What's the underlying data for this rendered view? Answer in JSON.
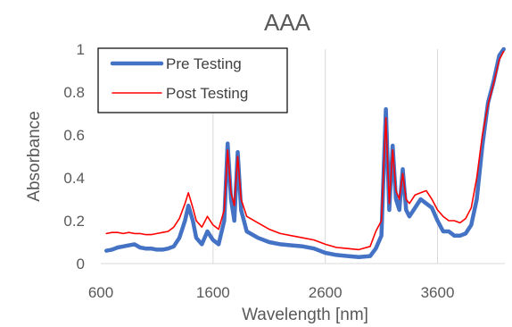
{
  "chart_data": {
    "type": "line",
    "title": "AAA",
    "xlabel": "Wavelength [nm]",
    "ylabel": "Absorbance",
    "xlim": [
      600,
      4200
    ],
    "ylim": [
      0,
      1
    ],
    "x_ticks": [
      600,
      1600,
      2600,
      3600
    ],
    "x_tick_labels": [
      "600",
      "1600",
      "2600",
      "3600"
    ],
    "y_ticks": [
      0,
      0.2,
      0.4,
      0.6,
      0.8,
      1
    ],
    "y_tick_labels": [
      "0",
      "0.2",
      "0.4",
      "0.6",
      "0.8",
      "1"
    ],
    "grid": "vertical",
    "legend_position": "top-left",
    "series": [
      {
        "name": "Pre Testing",
        "color": "#4472C4",
        "width": 4.5,
        "points": [
          [
            650,
            0.06
          ],
          [
            700,
            0.065
          ],
          [
            750,
            0.075
          ],
          [
            800,
            0.08
          ],
          [
            850,
            0.085
          ],
          [
            900,
            0.09
          ],
          [
            950,
            0.075
          ],
          [
            1000,
            0.07
          ],
          [
            1050,
            0.07
          ],
          [
            1100,
            0.065
          ],
          [
            1150,
            0.065
          ],
          [
            1200,
            0.07
          ],
          [
            1250,
            0.08
          ],
          [
            1300,
            0.12
          ],
          [
            1350,
            0.2
          ],
          [
            1380,
            0.27
          ],
          [
            1420,
            0.2
          ],
          [
            1450,
            0.12
          ],
          [
            1500,
            0.09
          ],
          [
            1550,
            0.15
          ],
          [
            1600,
            0.11
          ],
          [
            1650,
            0.09
          ],
          [
            1700,
            0.2
          ],
          [
            1730,
            0.56
          ],
          [
            1760,
            0.3
          ],
          [
            1790,
            0.2
          ],
          [
            1820,
            0.52
          ],
          [
            1850,
            0.25
          ],
          [
            1900,
            0.15
          ],
          [
            2000,
            0.12
          ],
          [
            2100,
            0.1
          ],
          [
            2200,
            0.09
          ],
          [
            2300,
            0.085
          ],
          [
            2400,
            0.08
          ],
          [
            2500,
            0.07
          ],
          [
            2600,
            0.05
          ],
          [
            2700,
            0.04
          ],
          [
            2800,
            0.035
          ],
          [
            2900,
            0.03
          ],
          [
            3000,
            0.035
          ],
          [
            3050,
            0.07
          ],
          [
            3100,
            0.13
          ],
          [
            3140,
            0.72
          ],
          [
            3170,
            0.25
          ],
          [
            3200,
            0.55
          ],
          [
            3230,
            0.3
          ],
          [
            3260,
            0.25
          ],
          [
            3290,
            0.44
          ],
          [
            3320,
            0.25
          ],
          [
            3350,
            0.22
          ],
          [
            3400,
            0.26
          ],
          [
            3450,
            0.3
          ],
          [
            3500,
            0.28
          ],
          [
            3550,
            0.26
          ],
          [
            3600,
            0.2
          ],
          [
            3650,
            0.15
          ],
          [
            3700,
            0.15
          ],
          [
            3750,
            0.13
          ],
          [
            3800,
            0.13
          ],
          [
            3850,
            0.14
          ],
          [
            3900,
            0.18
          ],
          [
            3950,
            0.3
          ],
          [
            4000,
            0.55
          ],
          [
            4050,
            0.75
          ],
          [
            4100,
            0.85
          ],
          [
            4150,
            0.97
          ],
          [
            4190,
            1.0
          ]
        ]
      },
      {
        "name": "Post Testing",
        "color": "#FF0000",
        "width": 1.6,
        "points": [
          [
            650,
            0.14
          ],
          [
            700,
            0.145
          ],
          [
            750,
            0.145
          ],
          [
            800,
            0.14
          ],
          [
            850,
            0.145
          ],
          [
            900,
            0.14
          ],
          [
            950,
            0.14
          ],
          [
            1000,
            0.135
          ],
          [
            1050,
            0.135
          ],
          [
            1100,
            0.14
          ],
          [
            1150,
            0.145
          ],
          [
            1200,
            0.15
          ],
          [
            1250,
            0.17
          ],
          [
            1300,
            0.21
          ],
          [
            1350,
            0.28
          ],
          [
            1380,
            0.33
          ],
          [
            1420,
            0.26
          ],
          [
            1450,
            0.2
          ],
          [
            1500,
            0.17
          ],
          [
            1550,
            0.22
          ],
          [
            1600,
            0.18
          ],
          [
            1650,
            0.16
          ],
          [
            1700,
            0.25
          ],
          [
            1730,
            0.53
          ],
          [
            1760,
            0.33
          ],
          [
            1790,
            0.27
          ],
          [
            1820,
            0.5
          ],
          [
            1850,
            0.3
          ],
          [
            1900,
            0.22
          ],
          [
            2000,
            0.19
          ],
          [
            2100,
            0.16
          ],
          [
            2200,
            0.14
          ],
          [
            2300,
            0.13
          ],
          [
            2400,
            0.12
          ],
          [
            2500,
            0.11
          ],
          [
            2600,
            0.09
          ],
          [
            2700,
            0.075
          ],
          [
            2800,
            0.07
          ],
          [
            2900,
            0.065
          ],
          [
            3000,
            0.08
          ],
          [
            3050,
            0.15
          ],
          [
            3100,
            0.2
          ],
          [
            3140,
            0.68
          ],
          [
            3170,
            0.28
          ],
          [
            3200,
            0.53
          ],
          [
            3230,
            0.34
          ],
          [
            3260,
            0.3
          ],
          [
            3290,
            0.42
          ],
          [
            3320,
            0.3
          ],
          [
            3350,
            0.28
          ],
          [
            3400,
            0.32
          ],
          [
            3450,
            0.33
          ],
          [
            3500,
            0.34
          ],
          [
            3550,
            0.3
          ],
          [
            3600,
            0.25
          ],
          [
            3650,
            0.22
          ],
          [
            3700,
            0.2
          ],
          [
            3750,
            0.2
          ],
          [
            3800,
            0.19
          ],
          [
            3850,
            0.21
          ],
          [
            3900,
            0.26
          ],
          [
            3950,
            0.4
          ],
          [
            4000,
            0.6
          ],
          [
            4050,
            0.74
          ],
          [
            4100,
            0.84
          ],
          [
            4150,
            0.95
          ],
          [
            4190,
            0.99
          ]
        ]
      }
    ]
  }
}
